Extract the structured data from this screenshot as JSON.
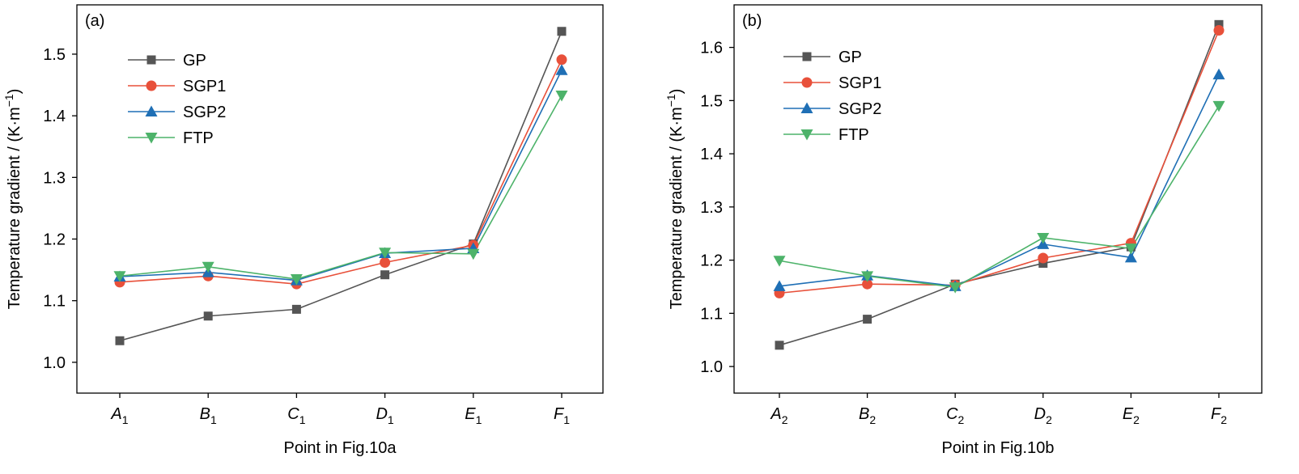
{
  "chart_data": [
    {
      "type": "line",
      "panel_label": "(a)",
      "xlabel": "Point in Fig.10a",
      "ylabel": "Temperature gradient / (K·m",
      "ylabel_sup": "−1",
      "ylabel_close": ")",
      "categories": [
        {
          "main": "A",
          "sub": "1"
        },
        {
          "main": "B",
          "sub": "1"
        },
        {
          "main": "C",
          "sub": "1"
        },
        {
          "main": "D",
          "sub": "1"
        },
        {
          "main": "E",
          "sub": "1"
        },
        {
          "main": "F",
          "sub": "1"
        }
      ],
      "ylim": [
        0.95,
        1.58
      ],
      "yticks": [
        "1.0",
        "1.1",
        "1.2",
        "1.3",
        "1.4",
        "1.5"
      ],
      "grid": false,
      "legend_position": "top-left",
      "series": [
        {
          "name": "GP",
          "color": "#555555",
          "marker": "square",
          "values": [
            1.035,
            1.075,
            1.086,
            1.142,
            1.192,
            1.537
          ]
        },
        {
          "name": "SGP1",
          "color": "#e8503a",
          "marker": "circle",
          "values": [
            1.13,
            1.14,
            1.127,
            1.162,
            1.19,
            1.491
          ]
        },
        {
          "name": "SGP2",
          "color": "#1f6fb5",
          "marker": "triangle-up",
          "values": [
            1.139,
            1.146,
            1.133,
            1.177,
            1.185,
            1.474
          ]
        },
        {
          "name": "FTP",
          "color": "#4db36a",
          "marker": "triangle-down",
          "values": [
            1.14,
            1.155,
            1.135,
            1.178,
            1.176,
            1.433
          ]
        }
      ]
    },
    {
      "type": "line",
      "panel_label": "(b)",
      "xlabel": "Point in Fig.10b",
      "ylabel": "Temperature gradient / (K·m",
      "ylabel_sup": "−1",
      "ylabel_close": ")",
      "categories": [
        {
          "main": "A",
          "sub": "2"
        },
        {
          "main": "B",
          "sub": "2"
        },
        {
          "main": "C",
          "sub": "2"
        },
        {
          "main": "D",
          "sub": "2"
        },
        {
          "main": "E",
          "sub": "2"
        },
        {
          "main": "F",
          "sub": "2"
        }
      ],
      "ylim": [
        0.95,
        1.68
      ],
      "yticks": [
        "1.0",
        "1.1",
        "1.2",
        "1.3",
        "1.4",
        "1.5",
        "1.6"
      ],
      "grid": false,
      "legend_position": "top-left",
      "series": [
        {
          "name": "GP",
          "color": "#555555",
          "marker": "square",
          "values": [
            1.04,
            1.089,
            1.155,
            1.194,
            1.225,
            1.643
          ]
        },
        {
          "name": "SGP1",
          "color": "#e8503a",
          "marker": "circle",
          "values": [
            1.138,
            1.155,
            1.153,
            1.204,
            1.232,
            1.632
          ]
        },
        {
          "name": "SGP2",
          "color": "#1f6fb5",
          "marker": "triangle-up",
          "values": [
            1.151,
            1.171,
            1.151,
            1.23,
            1.205,
            1.549
          ]
        },
        {
          "name": "FTP",
          "color": "#4db36a",
          "marker": "triangle-down",
          "values": [
            1.199,
            1.17,
            1.149,
            1.242,
            1.222,
            1.49
          ]
        }
      ]
    }
  ]
}
